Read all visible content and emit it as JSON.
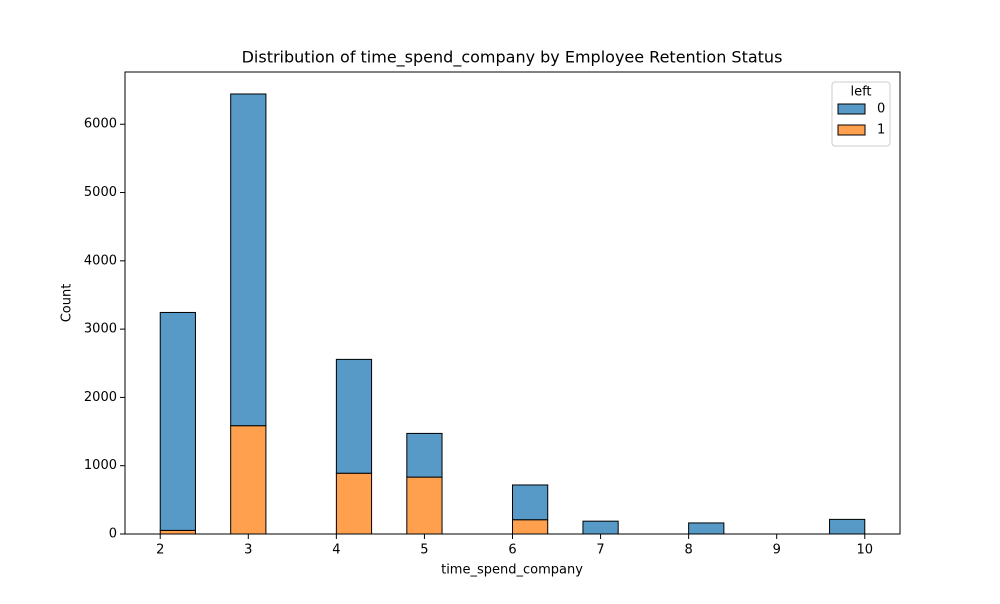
{
  "chart_data": {
    "type": "histogram",
    "title": "Distribution of time_spend_company by Employee Retention Status",
    "x_label": "time_spend_company",
    "y_label": "Count",
    "bins": [
      2,
      2.4,
      2.8,
      3.2,
      3.6,
      4.0,
      4.4,
      4.8,
      5.2,
      5.6,
      6.0,
      6.4,
      6.8,
      7.2,
      7.6,
      8.0,
      8.4,
      8.8,
      9.2,
      9.6,
      10
    ],
    "series": [
      {
        "name": "0",
        "color": "#5799c7",
        "values": [
          3191,
          0,
          4857,
          0,
          0,
          1667,
          0,
          640,
          0,
          0,
          509,
          0,
          188,
          0,
          0,
          162,
          0,
          0,
          0,
          214
        ]
      },
      {
        "name": "1",
        "color": "#ffa04f",
        "values": [
          53,
          0,
          1586,
          0,
          0,
          890,
          0,
          833,
          0,
          0,
          209,
          0,
          0,
          0,
          0,
          0,
          0,
          0,
          0,
          0
        ]
      }
    ],
    "legend_title": "left",
    "legend_position": "upper right",
    "xlim": [
      1.6,
      10.4
    ],
    "ylim": [
      0,
      6765
    ],
    "xticks": [
      2,
      3,
      4,
      5,
      6,
      7,
      8,
      9,
      10
    ],
    "yticks": [
      0,
      1000,
      2000,
      3000,
      4000,
      5000,
      6000
    ]
  }
}
